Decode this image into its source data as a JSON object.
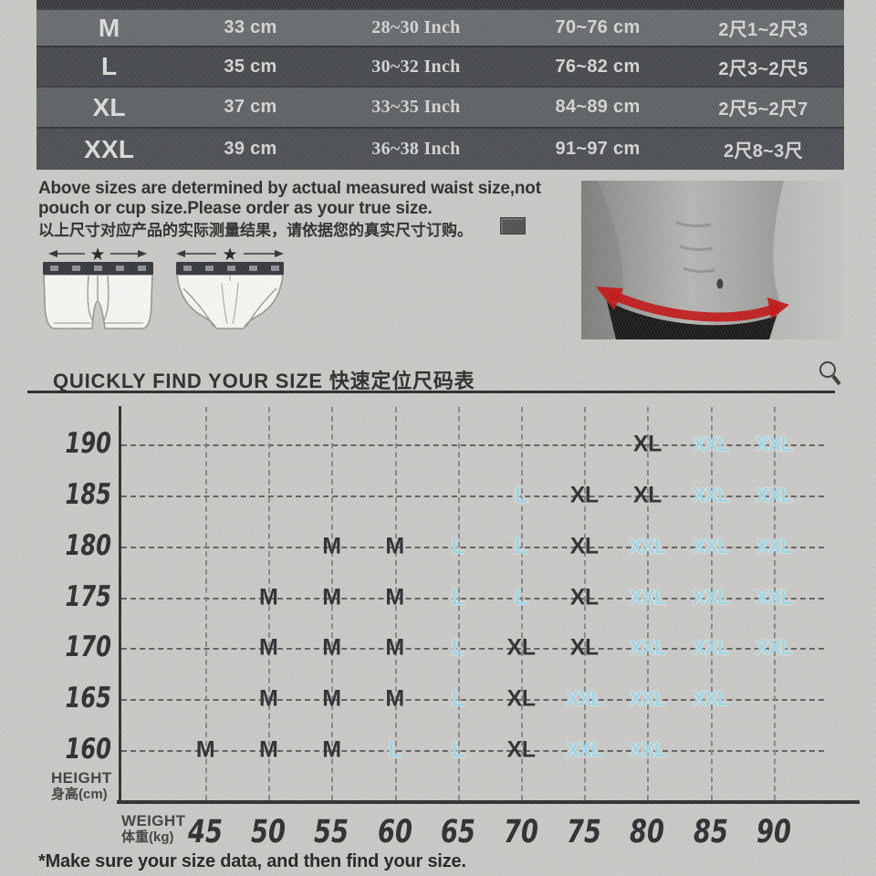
{
  "colors": {
    "accent_cyan": "#9fd6e4",
    "label_dark": "#2b2e31",
    "highlight_red": "#c21414",
    "table_text": "#d5d5d2"
  },
  "icons": {
    "star": "★",
    "magnifier": "magnifying-glass",
    "measure_arrow": "double-headed-arrow",
    "waist_arrow": "red-curved-waist-arrow"
  },
  "notice": {
    "en_line1": "Above sizes are determined by actual measured waist size,not",
    "en_line2": "pouch or cup size.Please order as your true size.",
    "zh": "以上尺寸对应产品的实际测量结果，请依据您的真实尺寸订购。"
  },
  "finder": {
    "footnote": "*Make sure your size data, and then find your size.",
    "height_label_en": "HEIGHT",
    "height_label_zh": "身高(cm)",
    "weight_label_en": "WEIGHT",
    "weight_label_zh": "体重(kg)"
  },
  "chart_data": [
    {
      "type": "table",
      "rows": [
        [
          "M",
          "33 cm",
          "28~30 Inch",
          "70~76 cm",
          "2尺1~2尺3"
        ],
        [
          "L",
          "35 cm",
          "30~32 Inch",
          "76~82 cm",
          "2尺3~2尺5"
        ],
        [
          "XL",
          "37 cm",
          "33~35 Inch",
          "84~89 cm",
          "2尺5~2尺7"
        ],
        [
          "XXL",
          "39 cm",
          "36~38 Inch",
          "91~97 cm",
          "2尺8~3尺"
        ]
      ]
    },
    {
      "type": "scatter",
      "title": "QUICKLY FIND YOUR SIZE 快速定位尺码表",
      "xlabel": "WEIGHT 体重(kg)",
      "ylabel": "HEIGHT 身高(cm)",
      "x_ticks": [
        45,
        50,
        55,
        60,
        65,
        70,
        75,
        80,
        85,
        90
      ],
      "y_ticks": [
        190,
        185,
        180,
        175,
        170,
        165,
        160
      ],
      "grid": true,
      "points": [
        {
          "h": 190,
          "w": 80,
          "label": "XL",
          "tone": "dark"
        },
        {
          "h": 190,
          "w": 85,
          "label": "XXL",
          "tone": "cyan"
        },
        {
          "h": 190,
          "w": 90,
          "label": "XXL",
          "tone": "cyan"
        },
        {
          "h": 185,
          "w": 70,
          "label": "L",
          "tone": "cyan"
        },
        {
          "h": 185,
          "w": 75,
          "label": "XL",
          "tone": "dark"
        },
        {
          "h": 185,
          "w": 80,
          "label": "XL",
          "tone": "dark"
        },
        {
          "h": 185,
          "w": 85,
          "label": "XXL",
          "tone": "cyan"
        },
        {
          "h": 185,
          "w": 90,
          "label": "XXL",
          "tone": "cyan"
        },
        {
          "h": 180,
          "w": 55,
          "label": "M",
          "tone": "dark"
        },
        {
          "h": 180,
          "w": 60,
          "label": "M",
          "tone": "dark"
        },
        {
          "h": 180,
          "w": 65,
          "label": "L",
          "tone": "cyan"
        },
        {
          "h": 180,
          "w": 70,
          "label": "L",
          "tone": "cyan"
        },
        {
          "h": 180,
          "w": 75,
          "label": "XL",
          "tone": "dark"
        },
        {
          "h": 180,
          "w": 80,
          "label": "XXL",
          "tone": "cyan"
        },
        {
          "h": 180,
          "w": 85,
          "label": "XXL",
          "tone": "cyan"
        },
        {
          "h": 180,
          "w": 90,
          "label": "XXL",
          "tone": "cyan"
        },
        {
          "h": 175,
          "w": 50,
          "label": "M",
          "tone": "dark"
        },
        {
          "h": 175,
          "w": 55,
          "label": "M",
          "tone": "dark"
        },
        {
          "h": 175,
          "w": 60,
          "label": "M",
          "tone": "dark"
        },
        {
          "h": 175,
          "w": 65,
          "label": "L",
          "tone": "cyan"
        },
        {
          "h": 175,
          "w": 70,
          "label": "L",
          "tone": "cyan"
        },
        {
          "h": 175,
          "w": 75,
          "label": "XL",
          "tone": "dark"
        },
        {
          "h": 175,
          "w": 80,
          "label": "XXL",
          "tone": "cyan"
        },
        {
          "h": 175,
          "w": 85,
          "label": "XXL",
          "tone": "cyan"
        },
        {
          "h": 175,
          "w": 90,
          "label": "XXL",
          "tone": "cyan"
        },
        {
          "h": 170,
          "w": 50,
          "label": "M",
          "tone": "dark"
        },
        {
          "h": 170,
          "w": 55,
          "label": "M",
          "tone": "dark"
        },
        {
          "h": 170,
          "w": 60,
          "label": "M",
          "tone": "dark"
        },
        {
          "h": 170,
          "w": 65,
          "label": "L",
          "tone": "cyan"
        },
        {
          "h": 170,
          "w": 70,
          "label": "XL",
          "tone": "dark"
        },
        {
          "h": 170,
          "w": 75,
          "label": "XL",
          "tone": "dark"
        },
        {
          "h": 170,
          "w": 80,
          "label": "XXL",
          "tone": "cyan"
        },
        {
          "h": 170,
          "w": 85,
          "label": "XXL",
          "tone": "cyan"
        },
        {
          "h": 170,
          "w": 90,
          "label": "XXL",
          "tone": "cyan"
        },
        {
          "h": 165,
          "w": 50,
          "label": "M",
          "tone": "dark"
        },
        {
          "h": 165,
          "w": 55,
          "label": "M",
          "tone": "dark"
        },
        {
          "h": 165,
          "w": 60,
          "label": "M",
          "tone": "dark"
        },
        {
          "h": 165,
          "w": 65,
          "label": "L",
          "tone": "cyan"
        },
        {
          "h": 165,
          "w": 70,
          "label": "XL",
          "tone": "dark"
        },
        {
          "h": 165,
          "w": 75,
          "label": "XXL",
          "tone": "cyan"
        },
        {
          "h": 165,
          "w": 80,
          "label": "XXL",
          "tone": "cyan"
        },
        {
          "h": 165,
          "w": 85,
          "label": "XXL",
          "tone": "cyan"
        },
        {
          "h": 160,
          "w": 45,
          "label": "M",
          "tone": "dark"
        },
        {
          "h": 160,
          "w": 50,
          "label": "M",
          "tone": "dark"
        },
        {
          "h": 160,
          "w": 55,
          "label": "M",
          "tone": "dark"
        },
        {
          "h": 160,
          "w": 60,
          "label": "L",
          "tone": "cyan"
        },
        {
          "h": 160,
          "w": 65,
          "label": "L",
          "tone": "cyan"
        },
        {
          "h": 160,
          "w": 70,
          "label": "XL",
          "tone": "dark"
        },
        {
          "h": 160,
          "w": 75,
          "label": "XXL",
          "tone": "cyan"
        },
        {
          "h": 160,
          "w": 80,
          "label": "XXL",
          "tone": "cyan"
        }
      ]
    }
  ]
}
